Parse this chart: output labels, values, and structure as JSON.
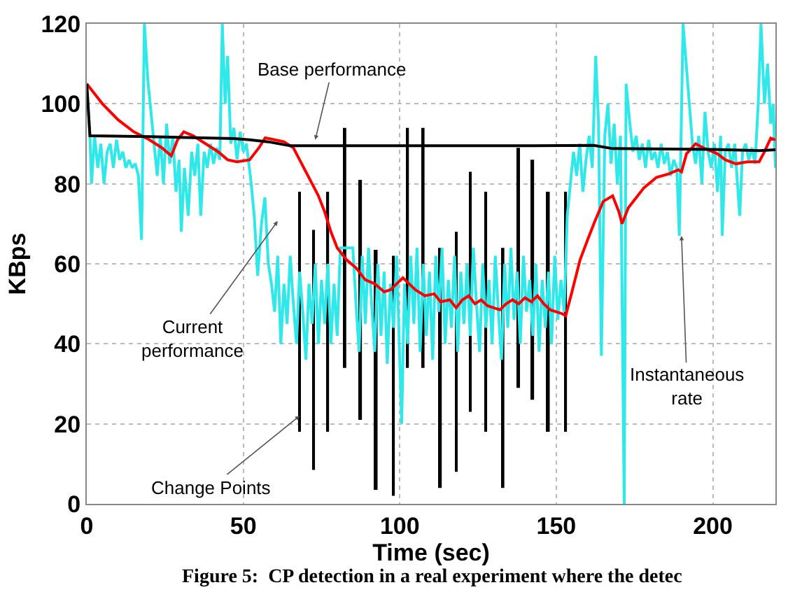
{
  "chart_data": {
    "type": "line",
    "xlabel": "Time (sec)",
    "ylabel": "KBps",
    "xlim": [
      0,
      220
    ],
    "xticks": [
      0,
      50,
      100,
      150,
      200
    ],
    "ylim": [
      0,
      120
    ],
    "yticks": [
      0,
      20,
      40,
      60,
      80,
      100,
      120
    ],
    "grid": true,
    "marker": "none",
    "line_style": "solid",
    "series": [
      {
        "color": "#2ee8ea",
        "x": [
          0,
          1,
          1.5,
          2.5,
          3.5,
          4.5,
          5.5,
          6.5,
          7.5,
          8.5,
          9.5,
          10.5,
          11.5,
          12.5,
          13.5,
          14.5,
          15.5,
          16.5,
          17.5,
          18.4,
          19.5,
          20.5,
          21.5,
          22.5,
          23.5,
          24.5,
          25.5,
          26.5,
          27.5,
          28.5,
          29.5,
          30.2,
          31.2,
          32.4,
          33.5,
          34.5,
          35.5,
          36.4,
          37.5,
          38.5,
          39.5,
          40.5,
          41.5,
          42.5,
          43.3,
          44.2,
          45,
          46,
          47,
          48,
          49,
          50,
          51,
          52.4,
          53.5,
          54.6,
          55.8,
          56.9,
          58,
          59,
          60,
          61,
          62,
          63,
          64,
          65,
          66,
          67,
          68,
          69,
          70,
          71,
          72,
          73,
          74,
          75,
          76,
          77,
          78,
          79,
          80,
          81,
          82,
          84,
          85,
          86,
          87,
          88,
          89,
          90,
          91,
          92,
          93,
          94,
          95,
          96,
          97,
          98,
          99,
          100.6,
          101.5,
          102.5,
          103.5,
          104.5,
          105.5,
          106.5,
          107.5,
          108.5,
          109.5,
          110.5,
          111.5,
          112.5,
          113.5,
          114.5,
          115.5,
          116.5,
          117.5,
          118.5,
          119.5,
          120.5,
          121.5,
          122.5,
          123.5,
          124.5,
          125.5,
          126.5,
          127.5,
          128.5,
          129.5,
          130.5,
          131.5,
          132.5,
          133.5,
          134.5,
          135.5,
          136.5,
          137.5,
          138.5,
          139.5,
          140.5,
          141.5,
          142.5,
          143.5,
          144.5,
          145.5,
          146.5,
          147.5,
          148.5,
          149.5,
          150.5,
          151.5,
          152.5,
          153.5,
          154.5,
          155.5,
          156.5,
          157.5,
          158.5,
          159.5,
          160.5,
          161.5,
          162.6,
          163.5,
          164.4,
          165.5,
          166.5,
          167.5,
          168.5,
          169.5,
          170.5,
          171.7,
          172.3,
          173.5,
          174.5,
          175.5,
          176.5,
          177.5,
          178.5,
          179.5,
          180.5,
          181.5,
          182.5,
          183.5,
          184.5,
          185.5,
          186.5,
          187.5,
          188.5,
          189.3,
          190.5,
          191.5,
          192.5,
          193.5,
          194.5,
          195.5,
          196.5,
          197.5,
          198.5,
          199.5,
          200.5,
          201.5,
          202.5,
          203,
          204,
          205,
          206,
          207,
          208.6,
          209.5,
          210.5,
          211.5,
          212.5,
          213.5,
          214.5,
          215.4,
          216.5,
          217.5,
          218.5,
          219.3,
          220
        ],
        "values": [
          105,
          92,
          80,
          92,
          84,
          90,
          80,
          88,
          90,
          84,
          91,
          86,
          88,
          84,
          86,
          84,
          85,
          82,
          66,
          120,
          106,
          98,
          90,
          82,
          92,
          80,
          95,
          85,
          92,
          78,
          86,
          68,
          84,
          72,
          88,
          82,
          90,
          72,
          88,
          84,
          90,
          85,
          89,
          86,
          120,
          100,
          112,
          90,
          94,
          86,
          93,
          88,
          90,
          81,
          72,
          57,
          70,
          76.6,
          60,
          55,
          48,
          62,
          40,
          55,
          45,
          62,
          50,
          40,
          58,
          48,
          36,
          55,
          45,
          60,
          40,
          56,
          45,
          60,
          40,
          55,
          42,
          64,
          64,
          64,
          64,
          50,
          38,
          62,
          45,
          64,
          50,
          38,
          60,
          42,
          58,
          35,
          55,
          44,
          62,
          20,
          55,
          40,
          62,
          45,
          64,
          38,
          60,
          42,
          58,
          36,
          62,
          48,
          64,
          40,
          56,
          44,
          62,
          38,
          58,
          45,
          60,
          42,
          64,
          50,
          38,
          60,
          44,
          56,
          40,
          62,
          48,
          36,
          60,
          44,
          64,
          46,
          58,
          40,
          62,
          48,
          56,
          42,
          60,
          38,
          56,
          44,
          58,
          40,
          62,
          46,
          56,
          48,
          72,
          80,
          88,
          82,
          90,
          78,
          86,
          92,
          84,
          112,
          95,
          37,
          92,
          100,
          85,
          95,
          80,
          92,
          0,
          105,
          95,
          88,
          92,
          86,
          90,
          84,
          91,
          86,
          88,
          84,
          90,
          85,
          88,
          82,
          86,
          84,
          67,
          120,
          110,
          100,
          90,
          85,
          92,
          80,
          98,
          88,
          84,
          90,
          78,
          92,
          67,
          88,
          90,
          84,
          90,
          72,
          88,
          90,
          86,
          89,
          85,
          100,
          120,
          100,
          110,
          95,
          100,
          84
        ]
      },
      {
        "type": "bar",
        "color": "#000000",
        "x": [
          68,
          72.5,
          77,
          82.5,
          87.5,
          92.5,
          98,
          102.5,
          107.5,
          113,
          118,
          122.5,
          127.5,
          133,
          138,
          142.5,
          147.5,
          153
        ],
        "base": [
          18,
          8.5,
          18,
          34,
          21,
          3.5,
          2,
          34,
          34,
          4,
          8,
          23,
          18,
          4,
          29,
          26,
          18,
          18
        ],
        "values": [
          60,
          60,
          60,
          60,
          60,
          60,
          60,
          60,
          60,
          60,
          60,
          60,
          60,
          60,
          60,
          60,
          60,
          60
        ]
      },
      {
        "color": "#ff0000",
        "x": [
          0,
          1,
          5,
          10,
          15,
          20,
          24,
          27,
          29,
          31,
          34,
          38,
          42,
          45,
          48,
          52,
          55,
          57,
          60,
          63,
          66,
          68,
          70,
          72,
          74,
          76,
          78,
          80,
          83,
          86,
          89,
          92,
          95,
          97,
          99,
          101,
          103,
          105,
          108,
          111,
          113,
          116,
          118,
          120,
          122,
          124,
          126,
          128,
          130,
          132,
          134,
          136,
          138,
          140,
          142,
          144,
          146,
          148,
          150,
          152,
          153,
          155,
          157.6,
          160,
          162,
          165,
          168,
          170,
          171,
          173,
          175,
          178,
          182,
          186,
          189,
          190,
          191.6,
          194.5,
          197,
          201.5,
          204,
          207.4,
          211,
          214.8,
          216.5,
          218.5,
          220
        ],
        "values": [
          105,
          104,
          100,
          96,
          93,
          91,
          89,
          87,
          91,
          93,
          92,
          90,
          88,
          86,
          85.5,
          86,
          89,
          91.5,
          91,
          90.5,
          89,
          86,
          83,
          80,
          77,
          73,
          68,
          64,
          61,
          59,
          56,
          55,
          53,
          53.5,
          55,
          56.5,
          55,
          53.5,
          52,
          52.5,
          50.5,
          51,
          49,
          51,
          52,
          50,
          51,
          49.5,
          49,
          48.5,
          50,
          51,
          50,
          51.5,
          50.5,
          52,
          50,
          48.5,
          48,
          47.5,
          47,
          53,
          61,
          66,
          70,
          75.6,
          77,
          73,
          70,
          74,
          76,
          79,
          81.6,
          82.5,
          83.5,
          83,
          87.5,
          90,
          89,
          87.5,
          86,
          85,
          85.5,
          85.5,
          88,
          91.4,
          91
        ]
      },
      {
        "color": "#000000",
        "x": [
          0,
          1,
          20,
          47,
          52,
          58,
          65,
          140,
          162,
          168,
          200,
          215,
          220
        ],
        "values": [
          105,
          92,
          91.8,
          91.3,
          91,
          90.5,
          89.5,
          89.5,
          89.6,
          88.8,
          88.6,
          88.3,
          88.5
        ]
      }
    ],
    "annotations": [
      {
        "text": "Base performance",
        "x": 73,
        "y": 91
      },
      {
        "text": "Current\nperformance",
        "x": 61,
        "y": 70.7
      },
      {
        "text": "Change Points",
        "x": 68,
        "y": 22
      },
      {
        "text": "Instantaneous\nrate",
        "x": 190,
        "y": 67
      },
      "Figure 5:  CP detection in a real experiment where the detec"
    ]
  }
}
